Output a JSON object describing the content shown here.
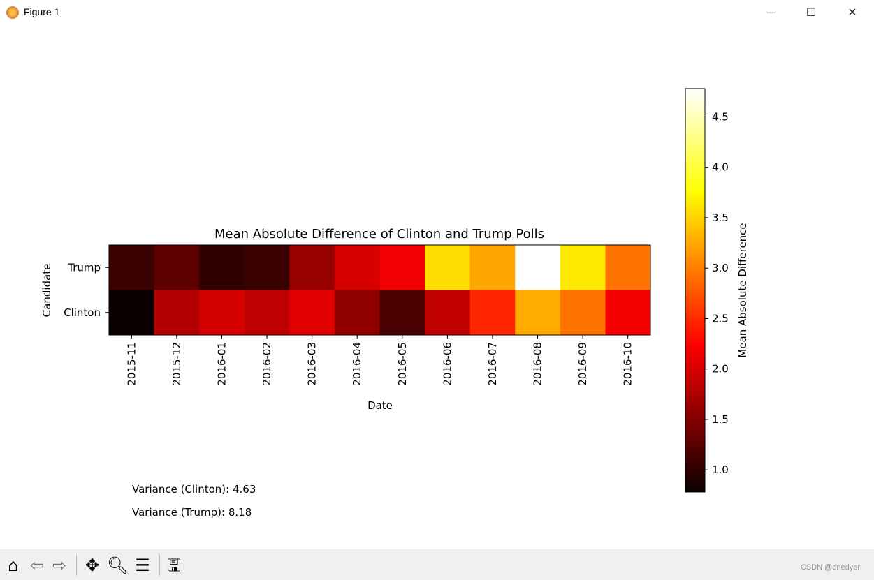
{
  "window": {
    "title": "Figure 1",
    "minimize": "—",
    "maximize": "☐",
    "close": "✕"
  },
  "toolbar": {
    "icons": [
      "home-icon",
      "back-icon",
      "forward-icon",
      "pan-icon",
      "zoom-icon",
      "configure-subplots-icon",
      "save-icon"
    ],
    "watermark": "CSDN @onedyer"
  },
  "chart_data": {
    "type": "heatmap",
    "title": "Mean Absolute Difference of Clinton and Trump Polls",
    "xlabel": "Date",
    "ylabel": "Candidate",
    "x": [
      "2015-11",
      "2015-12",
      "2016-01",
      "2016-02",
      "2016-03",
      "2016-04",
      "2016-05",
      "2016-06",
      "2016-07",
      "2016-08",
      "2016-09",
      "2016-10"
    ],
    "y": [
      "Trump",
      "Clinton"
    ],
    "values": [
      [
        1.07,
        1.27,
        1.0,
        1.06,
        1.62,
        2.0,
        2.15,
        3.56,
        3.23,
        4.78,
        3.63,
        2.93
      ],
      [
        0.78,
        1.79,
        1.99,
        1.86,
        2.06,
        1.58,
        1.15,
        1.87,
        2.46,
        3.26,
        2.93,
        2.18
      ]
    ],
    "colormap": "hot",
    "colorbar": {
      "label": "Mean Absolute Difference",
      "range": [
        0.78,
        4.78
      ],
      "ticks": [
        "1.0",
        "1.5",
        "2.0",
        "2.5",
        "3.0",
        "3.5",
        "4.0",
        "4.5"
      ]
    },
    "annotations": [
      "Variance (Clinton): 4.63",
      "Variance (Trump): 8.18"
    ]
  }
}
